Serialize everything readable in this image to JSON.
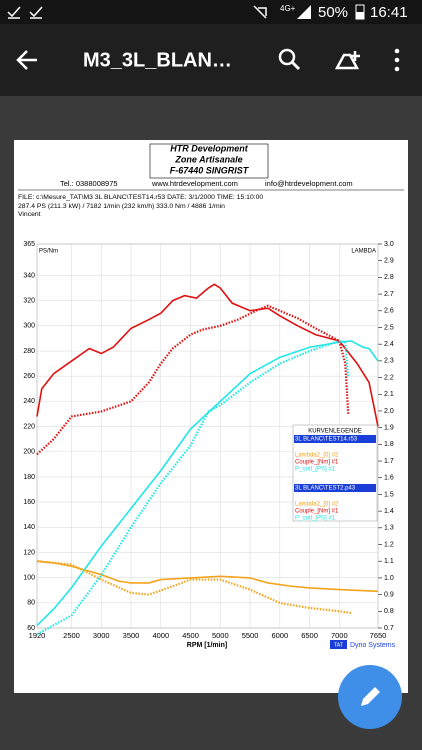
{
  "status_bar": {
    "network": "4G+",
    "battery": "50%",
    "time": "16:41"
  },
  "toolbar": {
    "title": "M3_3L_BLAN…"
  },
  "header": {
    "company": "HTR Development",
    "address1": "Zone Artisanale",
    "address2": "F-67440 SINGRIST",
    "phone": "Tel.: 0388008975",
    "web": "www.htrdevelopment.com",
    "email": "info@htrdevelopment.com",
    "file": "FILE: c:\\Mesure_TAT\\M3 3L BLANC\\TEST14.r53  DATE: 3/1/2000  TIME: 15:10:00",
    "result": "287.4 PS  (211.3 kW) / 7182 1/min (232 km/h)   333.0 Nm / 4886 1/min",
    "operator": "Vincent"
  },
  "chart_data": {
    "type": "line",
    "y_label": "PS/Nm",
    "y2_label": "LAMBDA",
    "x_label": "RPM  [1/min]",
    "footer": "Dyno Systems",
    "footer_logo": "TAT",
    "xlim": [
      1920,
      7650
    ],
    "xticks": [
      1920,
      2500,
      3000,
      3500,
      4000,
      4500,
      5000,
      5500,
      6000,
      6500,
      7000,
      7650
    ],
    "ylim": [
      60,
      365
    ],
    "yticks": [
      60,
      80,
      100,
      120,
      140,
      160,
      180,
      200,
      220,
      240,
      260,
      280,
      300,
      320,
      340,
      365
    ],
    "y2lim": [
      0.7,
      3.0
    ],
    "y2ticks": [
      0.7,
      0.8,
      0.9,
      {
        "value": 1.0,
        "label": "1.0"
      },
      1.1,
      1.2,
      1.3,
      1.4,
      1.5,
      1.6,
      1.7,
      1.8,
      1.9,
      {
        "value": 2.0,
        "label": "2.0"
      },
      2.1,
      2.2,
      2.3,
      2.4,
      2.5,
      2.6,
      2.7,
      2.8,
      2.9,
      {
        "value": 3.0,
        "label": "3.0"
      }
    ],
    "legend_title": "KURVENLEGENDE",
    "legend_groups": [
      "3L BLANC\\TEST14.r53",
      "3L BLANC\\TEST2.p43"
    ],
    "series": [
      {
        "name": "Lambda2_[0] #2",
        "group": 0,
        "color": "#f5a31a",
        "axis": "y2",
        "dotted": false,
        "x": [
          1920,
          2200,
          2500,
          2800,
          3000,
          3300,
          3500,
          3800,
          4000,
          4500,
          5000,
          5500,
          5800,
          6200,
          6500,
          7000,
          7650
        ],
        "values": [
          1.1,
          1.09,
          1.07,
          1.04,
          1.02,
          0.98,
          0.97,
          0.97,
          0.99,
          1.0,
          1.01,
          1.0,
          0.97,
          0.95,
          0.94,
          0.93,
          0.92
        ]
      },
      {
        "name": "Couple_[Nm] #1",
        "group": 0,
        "color": "#e01010",
        "dotted": false,
        "x": [
          1920,
          2000,
          2200,
          2500,
          2800,
          3000,
          3200,
          3500,
          3800,
          4000,
          4200,
          4400,
          4600,
          4800,
          4900,
          5000,
          5200,
          5500,
          5800,
          6000,
          6300,
          6600,
          7000,
          7300,
          7500,
          7650
        ],
        "values": [
          228,
          250,
          262,
          272,
          282,
          278,
          283,
          298,
          305,
          310,
          320,
          324,
          322,
          330,
          333,
          330,
          318,
          312,
          314,
          308,
          300,
          293,
          288,
          270,
          255,
          220
        ]
      },
      {
        "name": "P_outl_[PS] #1",
        "group": 0,
        "color": "#22e6e6",
        "dotted": false,
        "x": [
          1920,
          2200,
          2500,
          3000,
          3500,
          4000,
          4500,
          5000,
          5500,
          6000,
          6500,
          7000,
          7200,
          7400,
          7500,
          7650
        ],
        "values": [
          62,
          75,
          92,
          125,
          155,
          185,
          218,
          240,
          262,
          275,
          283,
          287,
          288,
          283,
          282,
          272
        ]
      },
      {
        "name": "Lambda2_[0] #2",
        "group": 1,
        "color": "#f5a31a",
        "axis": "y2",
        "dotted": true,
        "x": [
          1920,
          2500,
          3000,
          3500,
          3800,
          4200,
          4500,
          5000,
          5500,
          6000,
          6500,
          7000,
          7200
        ],
        "values": [
          1.1,
          1.08,
          0.99,
          0.91,
          0.9,
          0.95,
          0.99,
          0.99,
          0.93,
          0.85,
          0.82,
          0.8,
          0.79
        ]
      },
      {
        "name": "Couple_[Nm] #1",
        "group": 1,
        "color": "#e01010",
        "dotted": true,
        "x": [
          1920,
          2200,
          2500,
          3000,
          3500,
          3800,
          4000,
          4200,
          4500,
          4700,
          5000,
          5300,
          5600,
          5800,
          6000,
          6300,
          6600,
          7000,
          7100,
          7150
        ],
        "values": [
          198,
          210,
          228,
          232,
          240,
          255,
          270,
          282,
          293,
          297,
          300,
          305,
          312,
          316,
          312,
          306,
          298,
          288,
          270,
          230
        ]
      },
      {
        "name": "P_outl_[PS] #1",
        "group": 1,
        "color": "#22e6e6",
        "dotted": true,
        "x": [
          1920,
          2500,
          3000,
          3500,
          4000,
          4500,
          4800,
          5000,
          5500,
          6000,
          6500,
          7000,
          7100,
          7150
        ],
        "values": [
          55,
          70,
          102,
          140,
          175,
          205,
          232,
          237,
          255,
          270,
          280,
          288,
          287,
          260
        ]
      }
    ]
  }
}
